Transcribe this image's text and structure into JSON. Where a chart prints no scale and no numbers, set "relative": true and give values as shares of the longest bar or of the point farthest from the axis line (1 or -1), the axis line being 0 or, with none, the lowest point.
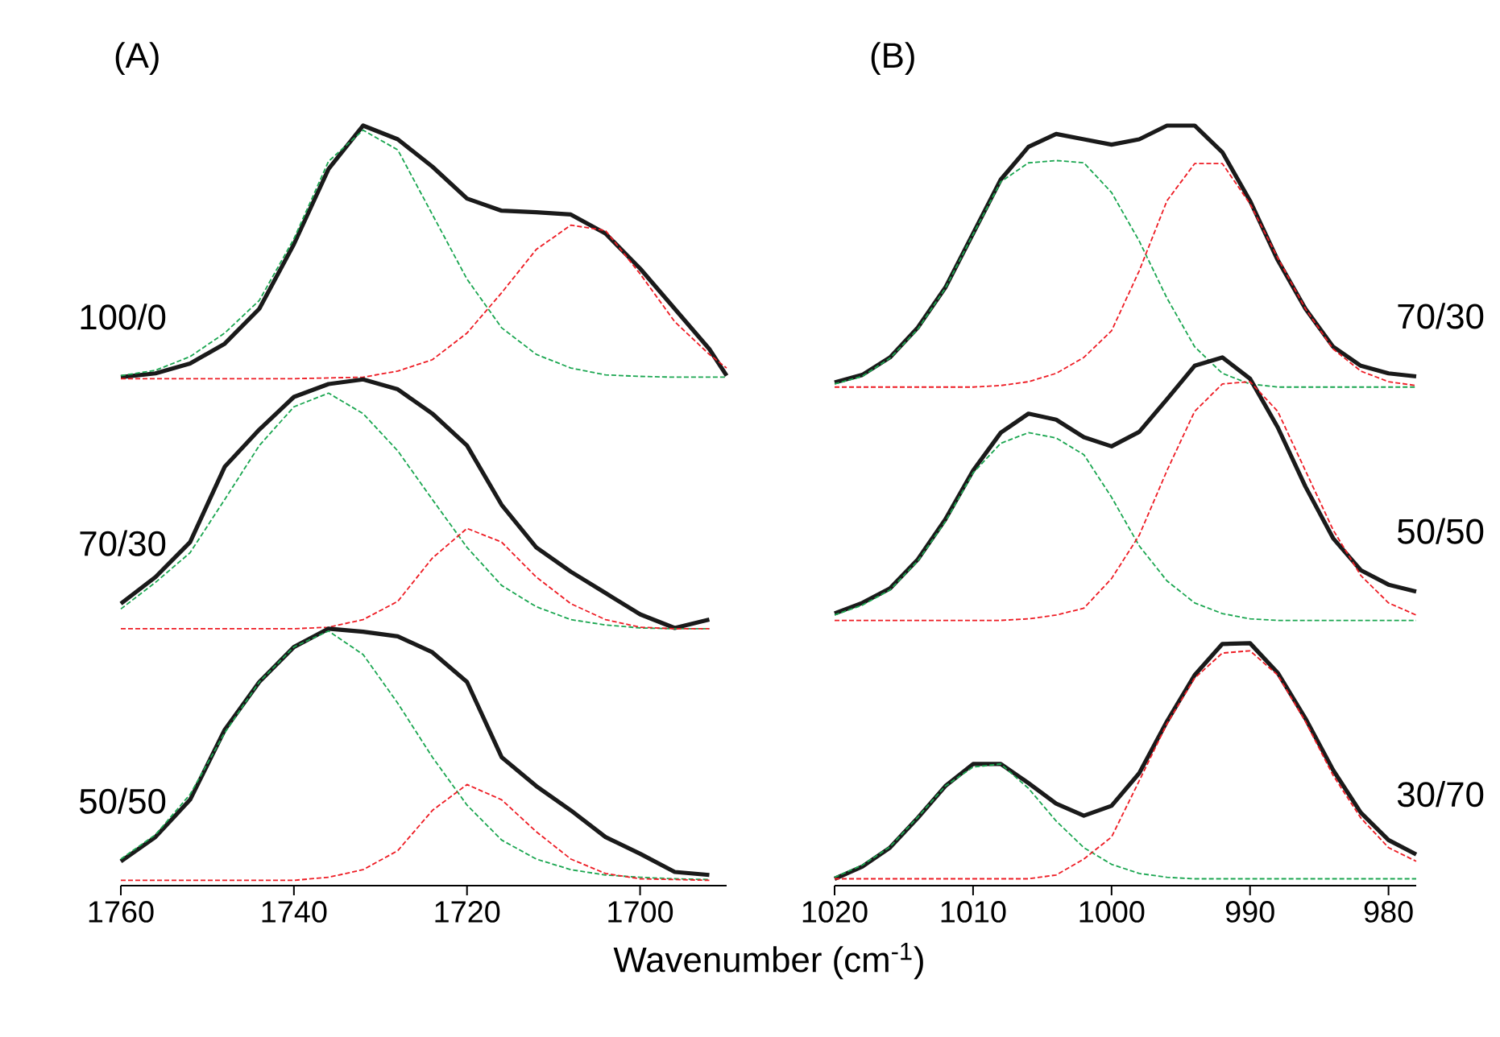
{
  "chart_data": [
    {
      "type": "line",
      "title": "(A)",
      "xlabel": "Wavenumber (cm$^{-1}$)",
      "relative": true,
      "tick_labels": "x",
      "marker": "none",
      "xlim": [
        1760,
        1690
      ],
      "xticks": [
        1760,
        1740,
        1720,
        1700
      ],
      "x": [
        1760,
        1756,
        1752,
        1748,
        1744,
        1740,
        1736,
        1732,
        1728,
        1724,
        1720,
        1716,
        1712,
        1708,
        1704,
        1700,
        1696,
        1692,
        1690
      ],
      "series": [
        {
          "name": "100/0",
          "color": "#1a1a1a",
          "line_style": "solid",
          "values": [
            0.669,
            0.674,
            0.687,
            0.713,
            0.759,
            0.844,
            0.943,
            1.0,
            0.982,
            0.946,
            0.904,
            0.888,
            0.886,
            0.883,
            0.858,
            0.812,
            0.759,
            0.706,
            0.671
          ]
        },
        {
          "color": "#1aa650",
          "line_style": "dashed",
          "values": [
            0.671,
            0.678,
            0.696,
            0.727,
            0.77,
            0.851,
            0.953,
            0.994,
            0.968,
            0.883,
            0.798,
            0.734,
            0.699,
            0.681,
            0.672,
            0.67,
            0.669,
            0.669,
            0.669
          ]
        },
        {
          "color": "#ee1c24",
          "line_style": "dashed",
          "values": [
            0.667,
            0.667,
            0.667,
            0.667,
            0.667,
            0.667,
            0.668,
            0.669,
            0.677,
            0.692,
            0.727,
            0.78,
            0.837,
            0.869,
            0.862,
            0.805,
            0.742,
            0.699,
            0.681
          ]
        },
        {
          "name": "70/30",
          "color": "#1a1a1a",
          "line_style": "solid",
          "values": [
            0.371,
            0.406,
            0.452,
            0.551,
            0.6,
            0.643,
            0.66,
            0.666,
            0.653,
            0.621,
            0.579,
            0.501,
            0.445,
            0.413,
            0.385,
            0.357,
            0.339,
            0.35,
            null
          ]
        },
        {
          "color": "#1aa650",
          "line_style": "dashed",
          "values": [
            0.364,
            0.399,
            0.438,
            0.508,
            0.579,
            0.63,
            0.648,
            0.621,
            0.572,
            0.508,
            0.445,
            0.395,
            0.367,
            0.35,
            0.343,
            0.339,
            0.338,
            0.338,
            null
          ]
        },
        {
          "color": "#ee1c24",
          "line_style": "dashed",
          "values": [
            0.338,
            0.338,
            0.338,
            0.338,
            0.338,
            0.338,
            0.34,
            0.35,
            0.374,
            0.431,
            0.47,
            0.452,
            0.406,
            0.371,
            0.35,
            0.34,
            0.338,
            0.338,
            null
          ]
        },
        {
          "name": "50/50",
          "color": "#1a1a1a",
          "line_style": "solid",
          "values": [
            0.032,
            0.064,
            0.113,
            0.205,
            0.268,
            0.314,
            0.338,
            0.334,
            0.328,
            0.307,
            0.268,
            0.169,
            0.131,
            0.099,
            0.064,
            0.042,
            0.018,
            0.014,
            null
          ]
        },
        {
          "color": "#1aa650",
          "line_style": "dashed",
          "values": [
            0.035,
            0.067,
            0.12,
            0.201,
            0.268,
            0.314,
            0.335,
            0.304,
            0.24,
            0.169,
            0.106,
            0.06,
            0.035,
            0.021,
            0.014,
            0.011,
            0.009,
            0.008,
            null
          ]
        },
        {
          "color": "#ee1c24",
          "line_style": "dashed",
          "values": [
            0.007,
            0.007,
            0.007,
            0.007,
            0.007,
            0.007,
            0.011,
            0.021,
            0.046,
            0.099,
            0.133,
            0.113,
            0.071,
            0.035,
            0.016,
            0.009,
            0.008,
            0.007,
            null
          ]
        }
      ]
    },
    {
      "type": "line",
      "title": "(B)",
      "relative": true,
      "tick_labels": "x",
      "marker": "none",
      "xlim": [
        1020,
        978
      ],
      "xticks": [
        1020,
        1010,
        1000,
        990,
        980
      ],
      "x": [
        1020,
        1018,
        1016,
        1014,
        1012,
        1010,
        1008,
        1006,
        1004,
        1002,
        1000,
        998,
        996,
        994,
        992,
        990,
        988,
        986,
        984,
        982,
        980,
        978
      ],
      "series": [
        {
          "name": "70/30",
          "color": "#1a1a1a",
          "line_style": "solid",
          "values": [
            0.662,
            0.672,
            0.695,
            0.734,
            0.787,
            0.858,
            0.929,
            0.972,
            0.989,
            0.982,
            0.975,
            0.982,
            1.0,
            1.0,
            0.965,
            0.901,
            0.823,
            0.759,
            0.709,
            0.684,
            0.674,
            0.67
          ]
        },
        {
          "color": "#1aa650",
          "line_style": "dashed",
          "values": [
            0.66,
            0.67,
            0.694,
            0.732,
            0.786,
            0.857,
            0.926,
            0.951,
            0.954,
            0.951,
            0.912,
            0.848,
            0.773,
            0.709,
            0.674,
            0.66,
            0.656,
            0.656,
            0.656,
            0.656,
            0.656,
            0.656
          ]
        },
        {
          "color": "#ee1c24",
          "line_style": "dashed",
          "values": [
            0.656,
            0.656,
            0.656,
            0.656,
            0.656,
            0.656,
            0.658,
            0.663,
            0.674,
            0.695,
            0.73,
            0.809,
            0.901,
            0.95,
            0.95,
            0.897,
            0.826,
            0.759,
            0.706,
            0.677,
            0.663,
            0.658
          ]
        },
        {
          "name": "50/50",
          "color": "#1a1a1a",
          "line_style": "solid",
          "values": [
            0.358,
            0.372,
            0.391,
            0.429,
            0.482,
            0.546,
            0.596,
            0.621,
            0.613,
            0.59,
            0.578,
            0.597,
            0.64,
            0.684,
            0.695,
            0.667,
            0.603,
            0.525,
            0.457,
            0.415,
            0.396,
            0.387
          ]
        },
        {
          "color": "#1aa650",
          "line_style": "dashed",
          "values": [
            0.356,
            0.369,
            0.389,
            0.427,
            0.479,
            0.543,
            0.582,
            0.596,
            0.589,
            0.567,
            0.511,
            0.447,
            0.401,
            0.372,
            0.358,
            0.351,
            0.349,
            0.349,
            0.349,
            0.349,
            0.349,
            0.349
          ]
        },
        {
          "color": "#ee1c24",
          "line_style": "dashed",
          "values": [
            0.349,
            0.349,
            0.349,
            0.349,
            0.349,
            0.349,
            0.349,
            0.351,
            0.356,
            0.365,
            0.404,
            0.461,
            0.546,
            0.624,
            0.66,
            0.663,
            0.624,
            0.546,
            0.468,
            0.408,
            0.372,
            0.356
          ]
        },
        {
          "name": "30/70",
          "color": "#1a1a1a",
          "line_style": "solid",
          "values": [
            0.009,
            0.025,
            0.05,
            0.089,
            0.131,
            0.16,
            0.16,
            0.135,
            0.108,
            0.092,
            0.105,
            0.148,
            0.216,
            0.277,
            0.318,
            0.319,
            0.28,
            0.22,
            0.152,
            0.096,
            0.06,
            0.041
          ]
        },
        {
          "color": "#1aa650",
          "line_style": "dashed",
          "values": [
            0.011,
            0.027,
            0.051,
            0.09,
            0.131,
            0.156,
            0.16,
            0.128,
            0.085,
            0.05,
            0.028,
            0.016,
            0.011,
            0.009,
            0.009,
            0.009,
            0.009,
            0.009,
            0.009,
            0.009,
            0.009,
            0.009
          ]
        },
        {
          "color": "#ee1c24",
          "line_style": "dashed",
          "values": [
            0.009,
            0.009,
            0.009,
            0.009,
            0.009,
            0.009,
            0.009,
            0.009,
            0.014,
            0.035,
            0.064,
            0.138,
            0.213,
            0.273,
            0.306,
            0.309,
            0.277,
            0.216,
            0.145,
            0.089,
            0.05,
            0.032
          ]
        }
      ]
    }
  ]
}
